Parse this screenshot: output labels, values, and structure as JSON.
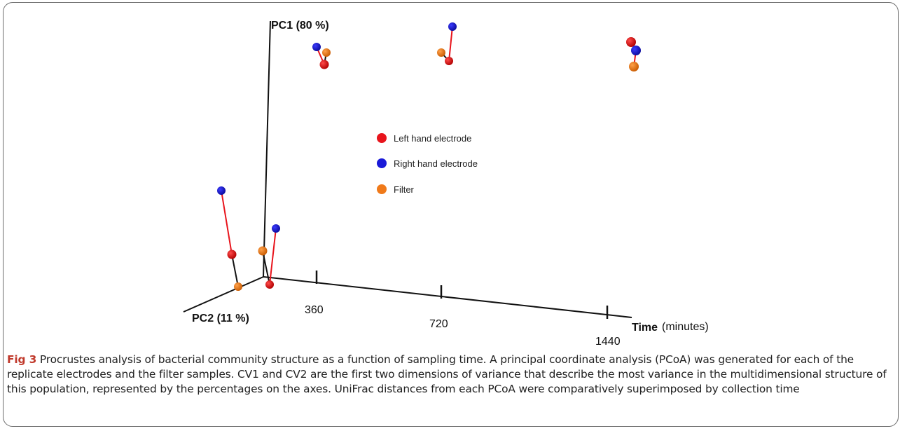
{
  "chart_data": {
    "type": "scatter",
    "title": "",
    "axes": {
      "pc1": "PC1 (80 %)",
      "pc2": "PC2 (11 %)",
      "time": "Time",
      "time_unit": "(minutes)"
    },
    "time_ticks": [
      "360",
      "720",
      "1440"
    ],
    "legend": [
      {
        "name": "Left hand electrode",
        "color": "#e8141c"
      },
      {
        "name": "Right hand electrode",
        "color": "#1a1ad8"
      },
      {
        "name": "Filter",
        "color": "#f07a1a"
      }
    ],
    "colors": {
      "left": "#e8141c",
      "right": "#1a1ad8",
      "filter": "#f07a1a",
      "procrustes_line": "#e8141c",
      "axis": "#111111"
    }
  },
  "caption": {
    "label": "Fig 3",
    "text": "Procrustes analysis of bacterial community structure as a function of sampling time. A principal coordinate analysis (PCoA) was generated for each of the replicate electrodes and the filter samples. CV1 and CV2 are the first two dimensions of variance that describe the most variance in the multidimensional structure of this population, represented by the percentages on the axes. UniFrac distances from each PCoA were comparatively superimposed by collection time"
  }
}
